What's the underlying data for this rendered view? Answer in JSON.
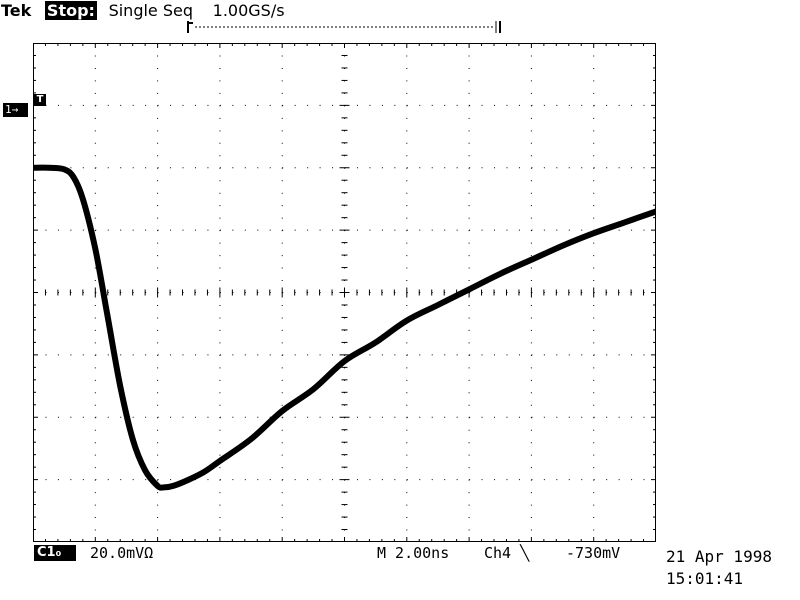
{
  "status": {
    "brand": "Tek",
    "acq_state": "Stop:",
    "acq_mode": "Single Seq",
    "sample_rate": "1.00GS/s"
  },
  "channel_marker": {
    "label": "1→"
  },
  "trigger_marker": {
    "label": "T"
  },
  "readout": {
    "channel_badge": "C1₀",
    "volts_per_div": "20.0mVΩ",
    "time_per_div": "M 2.00ns",
    "trigger_source": "Ch4 ╲",
    "trigger_level": "-730mV"
  },
  "timestamp": {
    "date": "21 Apr 1998",
    "time": "15:01:41"
  },
  "colors": {
    "trace": "#000000",
    "grid": "#000000",
    "background": "#ffffff"
  },
  "chart_data": {
    "type": "line",
    "title": "",
    "xlabel": "",
    "ylabel": "",
    "x_unit": "ns",
    "y_unit": "mV",
    "xlim": [
      0,
      20
    ],
    "ylim": [
      -80,
      80
    ],
    "x_divisions": 10,
    "y_divisions": 8,
    "grid": true,
    "series": [
      {
        "x": [
          0,
          0.5,
          1.0,
          1.3,
          1.6,
          2.0,
          2.4,
          2.8,
          3.2,
          3.6,
          4.0,
          4.2,
          4.5,
          5.0,
          5.5,
          6.0,
          7.0,
          8.0,
          9.0,
          10.0,
          11.0,
          12.0,
          13.0,
          14.0,
          15.0,
          16.0,
          17.0,
          18.0,
          19.0,
          20.0
        ],
        "y": [
          40,
          40,
          39.5,
          37,
          30,
          14,
          -8,
          -30,
          -47,
          -57,
          -62,
          -62.5,
          -62,
          -60,
          -57.5,
          -54,
          -47,
          -38,
          -31,
          -22,
          -16,
          -9,
          -4,
          1,
          6,
          10.5,
          15,
          19,
          22.5,
          26
        ]
      }
    ]
  }
}
